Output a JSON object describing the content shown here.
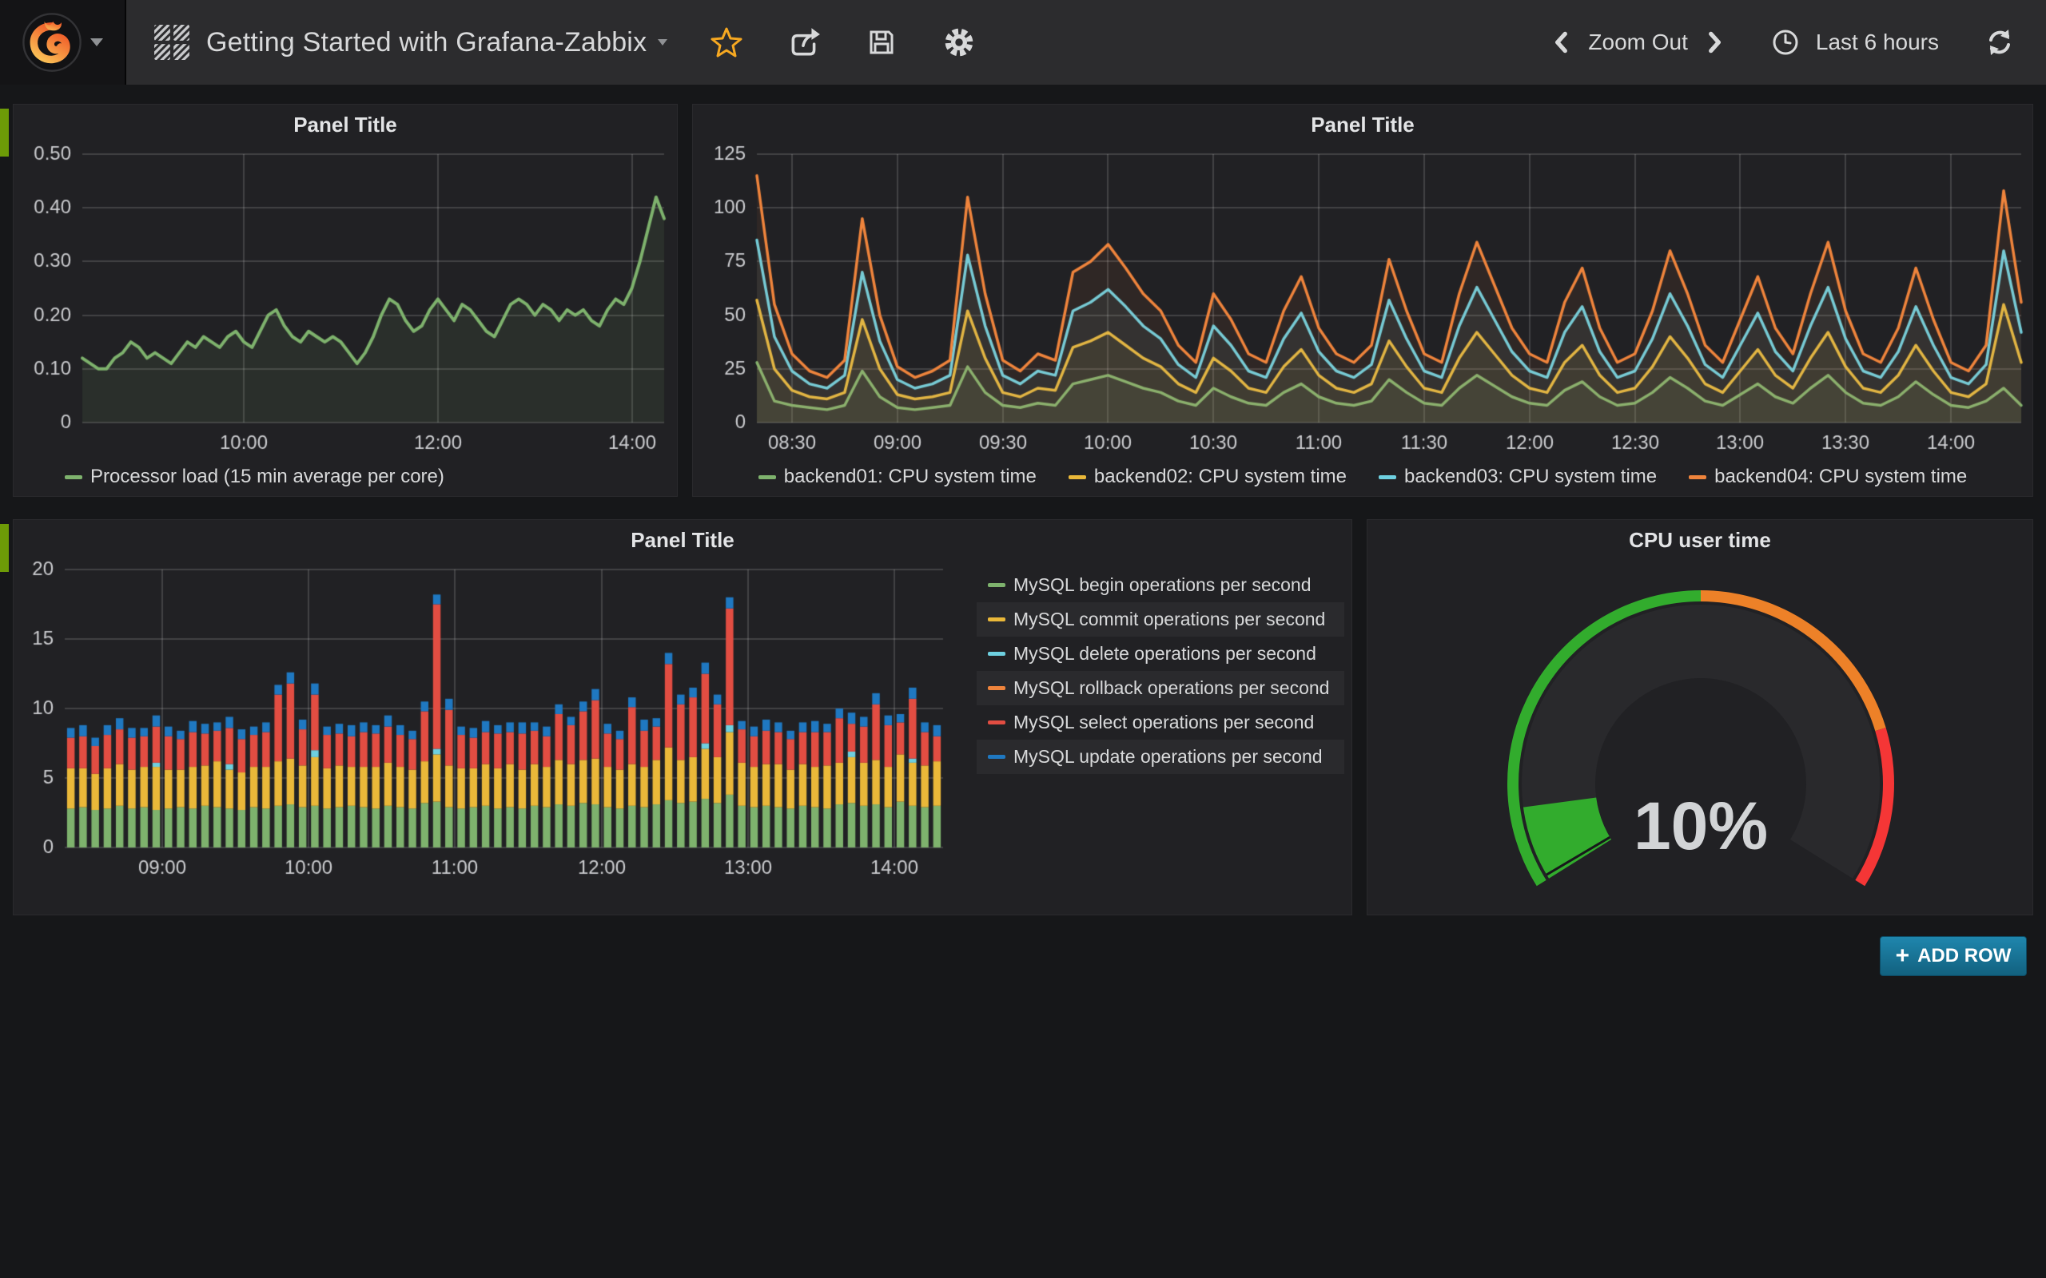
{
  "navbar": {
    "title": "Getting Started with Grafana-Zabbix",
    "zoom_out": "Zoom Out",
    "time_range": "Last 6 hours",
    "star_color": "#f6a821",
    "icon_color": "#d8d9da"
  },
  "add_row": {
    "label": "ADD ROW",
    "plus": "+"
  },
  "colors": {
    "green": "#7eb26d",
    "yellow": "#eab839",
    "cyan": "#6ed0e0",
    "orange": "#ef843c",
    "red": "#e24d42",
    "blue": "#1f78c1",
    "row_tab": "#6d9b07",
    "panel_bg": "#212124",
    "page_bg": "#161719",
    "navbar_bg": "#2c2c2e"
  },
  "chart_data": [
    {
      "type": "line",
      "title": "Panel Title",
      "window_min": 360,
      "x_start": "08:20",
      "x_step_min": 5,
      "ylim": [
        0,
        0.5
      ],
      "yticks": [
        {
          "v": 0,
          "label": "0"
        },
        {
          "v": 0.1,
          "label": "0.10"
        },
        {
          "v": 0.2,
          "label": "0.20"
        },
        {
          "v": 0.3,
          "label": "0.30"
        },
        {
          "v": 0.4,
          "label": "0.40"
        },
        {
          "v": 0.5,
          "label": "0.50"
        }
      ],
      "xticks": [
        {
          "label": "10:00",
          "t": 100
        },
        {
          "label": "12:00",
          "t": 220
        },
        {
          "label": "14:00",
          "t": 340
        }
      ],
      "series": [
        {
          "name": "Processor load (15 min average per core)",
          "color": "#7eb26d",
          "values": [
            0.12,
            0.11,
            0.1,
            0.1,
            0.12,
            0.13,
            0.15,
            0.14,
            0.12,
            0.13,
            0.12,
            0.11,
            0.13,
            0.15,
            0.14,
            0.16,
            0.15,
            0.14,
            0.16,
            0.17,
            0.15,
            0.14,
            0.17,
            0.2,
            0.21,
            0.18,
            0.16,
            0.15,
            0.17,
            0.16,
            0.15,
            0.16,
            0.15,
            0.13,
            0.11,
            0.13,
            0.16,
            0.2,
            0.23,
            0.22,
            0.19,
            0.17,
            0.18,
            0.21,
            0.23,
            0.21,
            0.19,
            0.22,
            0.21,
            0.19,
            0.17,
            0.16,
            0.19,
            0.22,
            0.23,
            0.22,
            0.2,
            0.22,
            0.21,
            0.19,
            0.21,
            0.2,
            0.21,
            0.19,
            0.18,
            0.21,
            0.23,
            0.22,
            0.25,
            0.3,
            0.36,
            0.42,
            0.38
          ]
        }
      ]
    },
    {
      "type": "line",
      "title": "Panel Title",
      "window_min": 360,
      "x_start": "08:20",
      "x_step_min": 5,
      "ylim": [
        0,
        125
      ],
      "yticks": [
        {
          "v": 0,
          "label": "0"
        },
        {
          "v": 25,
          "label": "25"
        },
        {
          "v": 50,
          "label": "50"
        },
        {
          "v": 75,
          "label": "75"
        },
        {
          "v": 100,
          "label": "100"
        },
        {
          "v": 125,
          "label": "125"
        }
      ],
      "xticks": [
        {
          "label": "08:30",
          "t": 10
        },
        {
          "label": "09:00",
          "t": 40
        },
        {
          "label": "09:30",
          "t": 70
        },
        {
          "label": "10:00",
          "t": 100
        },
        {
          "label": "10:30",
          "t": 130
        },
        {
          "label": "11:00",
          "t": 160
        },
        {
          "label": "11:30",
          "t": 190
        },
        {
          "label": "12:00",
          "t": 220
        },
        {
          "label": "12:30",
          "t": 250
        },
        {
          "label": "13:00",
          "t": 280
        },
        {
          "label": "13:30",
          "t": 310
        },
        {
          "label": "14:00",
          "t": 340
        }
      ],
      "series": [
        {
          "name": "backend01: CPU system time",
          "color": "#7eb26d",
          "values": [
            28,
            10,
            8,
            7,
            6,
            8,
            24,
            12,
            7,
            6,
            7,
            8,
            26,
            14,
            8,
            7,
            9,
            8,
            18,
            20,
            22,
            19,
            16,
            14,
            10,
            8,
            16,
            12,
            9,
            8,
            14,
            18,
            12,
            9,
            8,
            10,
            20,
            14,
            9,
            8,
            16,
            22,
            17,
            12,
            9,
            8,
            15,
            19,
            12,
            8,
            9,
            14,
            21,
            16,
            10,
            8,
            13,
            18,
            12,
            9,
            16,
            22,
            14,
            9,
            8,
            12,
            19,
            13,
            8,
            7,
            10,
            16,
            8
          ]
        },
        {
          "name": "backend02: CPU system time",
          "color": "#eab839",
          "values": [
            57,
            25,
            15,
            12,
            11,
            14,
            48,
            25,
            13,
            11,
            12,
            14,
            52,
            30,
            14,
            12,
            16,
            15,
            35,
            38,
            42,
            36,
            30,
            26,
            18,
            14,
            30,
            24,
            16,
            14,
            26,
            34,
            22,
            16,
            14,
            18,
            38,
            26,
            16,
            14,
            30,
            42,
            32,
            22,
            16,
            14,
            28,
            36,
            22,
            14,
            16,
            26,
            40,
            30,
            18,
            14,
            24,
            34,
            22,
            16,
            30,
            42,
            26,
            16,
            14,
            22,
            36,
            24,
            14,
            12,
            18,
            55,
            28
          ]
        },
        {
          "name": "backend03: CPU system time",
          "color": "#6ed0e0",
          "values": [
            85,
            40,
            24,
            18,
            16,
            22,
            70,
            38,
            20,
            16,
            18,
            22,
            78,
            45,
            22,
            18,
            24,
            22,
            52,
            56,
            62,
            54,
            45,
            39,
            27,
            21,
            45,
            36,
            24,
            21,
            39,
            51,
            33,
            24,
            21,
            27,
            57,
            39,
            24,
            21,
            45,
            63,
            48,
            33,
            24,
            21,
            42,
            54,
            33,
            21,
            24,
            39,
            60,
            45,
            27,
            21,
            36,
            51,
            33,
            24,
            45,
            63,
            39,
            24,
            21,
            33,
            54,
            36,
            21,
            18,
            27,
            80,
            42
          ]
        },
        {
          "name": "backend04: CPU system time",
          "color": "#ef843c",
          "values": [
            115,
            55,
            32,
            24,
            21,
            29,
            95,
            50,
            26,
            21,
            24,
            29,
            105,
            60,
            29,
            24,
            32,
            29,
            70,
            75,
            83,
            72,
            60,
            52,
            36,
            28,
            60,
            48,
            32,
            28,
            52,
            68,
            44,
            32,
            28,
            36,
            76,
            52,
            32,
            28,
            60,
            84,
            64,
            44,
            32,
            28,
            56,
            72,
            44,
            28,
            32,
            52,
            80,
            60,
            36,
            28,
            48,
            68,
            44,
            32,
            60,
            84,
            52,
            32,
            28,
            44,
            72,
            48,
            28,
            24,
            36,
            108,
            56
          ]
        }
      ]
    },
    {
      "type": "bar",
      "stacked": true,
      "title": "Panel Title",
      "window_min": 360,
      "x_start": "08:20",
      "x_step_min": 5,
      "ylim": [
        0,
        20
      ],
      "yticks": [
        {
          "v": 0,
          "label": "0"
        },
        {
          "v": 5,
          "label": "5"
        },
        {
          "v": 10,
          "label": "10"
        },
        {
          "v": 15,
          "label": "15"
        },
        {
          "v": 20,
          "label": "20"
        }
      ],
      "xticks": [
        {
          "label": "09:00",
          "t": 40
        },
        {
          "label": "10:00",
          "t": 100
        },
        {
          "label": "11:00",
          "t": 160
        },
        {
          "label": "12:00",
          "t": 220
        },
        {
          "label": "13:00",
          "t": 280
        },
        {
          "label": "14:00",
          "t": 340
        }
      ],
      "series": [
        {
          "name": "MySQL begin operations per second",
          "color": "#7eb26d",
          "values": [
            2.8,
            2.9,
            2.7,
            2.8,
            3.0,
            2.8,
            2.9,
            2.7,
            2.8,
            2.9,
            2.8,
            3.0,
            2.9,
            2.8,
            2.7,
            2.9,
            2.8,
            3.0,
            3.1,
            2.9,
            3.0,
            2.8,
            2.9,
            3.0,
            2.9,
            2.8,
            3.0,
            2.9,
            2.8,
            3.2,
            3.3,
            2.9,
            2.8,
            2.9,
            3.0,
            2.8,
            2.9,
            2.8,
            3.0,
            2.9,
            3.1,
            3.0,
            3.2,
            3.1,
            2.9,
            2.8,
            3.0,
            2.9,
            3.1,
            3.4,
            3.2,
            3.3,
            3.5,
            3.2,
            3.8,
            3.0,
            2.9,
            3.0,
            2.9,
            2.8,
            3.0,
            2.9,
            2.8,
            3.1,
            3.2,
            3.0,
            3.1,
            2.9,
            3.3,
            3.0,
            2.9,
            3.0
          ]
        },
        {
          "name": "MySQL commit operations per second",
          "color": "#eab839",
          "values": [
            2.9,
            2.8,
            2.6,
            2.9,
            3.0,
            2.8,
            2.9,
            3.1,
            2.8,
            2.7,
            3.0,
            2.9,
            3.3,
            2.8,
            2.7,
            2.9,
            3.0,
            3.2,
            3.3,
            3.0,
            3.5,
            2.9,
            3.0,
            2.8,
            2.9,
            3.0,
            3.1,
            2.9,
            2.8,
            3.0,
            3.4,
            3.0,
            2.9,
            2.8,
            3.0,
            2.9,
            3.1,
            2.8,
            3.0,
            2.9,
            3.2,
            3.0,
            3.1,
            3.3,
            2.9,
            2.8,
            3.0,
            2.9,
            3.2,
            3.8,
            3.1,
            3.2,
            3.6,
            3.3,
            4.5,
            3.1,
            2.9,
            3.0,
            3.1,
            2.8,
            3.0,
            2.9,
            3.1,
            3.0,
            3.3,
            3.1,
            3.2,
            2.9,
            3.4,
            3.1,
            3.0,
            3.2
          ]
        },
        {
          "name": "MySQL delete operations per second",
          "color": "#6ed0e0",
          "values": [
            0,
            0,
            0,
            0,
            0,
            0,
            0,
            0.3,
            0,
            0,
            0,
            0,
            0,
            0.4,
            0,
            0,
            0,
            0,
            0,
            0,
            0.5,
            0,
            0,
            0,
            0,
            0,
            0,
            0,
            0,
            0,
            0.4,
            0,
            0,
            0,
            0,
            0,
            0,
            0,
            0,
            0,
            0,
            0,
            0,
            0,
            0,
            0,
            0,
            0,
            0,
            0,
            0,
            0,
            0.4,
            0,
            0.5,
            0,
            0,
            0,
            0,
            0,
            0,
            0,
            0,
            0,
            0.4,
            0,
            0,
            0,
            0,
            0.3,
            0,
            0
          ]
        },
        {
          "name": "MySQL rollback operations per second",
          "color": "#ef843c",
          "values": [
            0,
            0,
            0,
            0,
            0,
            0,
            0,
            0,
            0,
            0,
            0,
            0,
            0,
            0,
            0,
            0,
            0,
            0,
            0,
            0,
            0,
            0,
            0,
            0,
            0,
            0,
            0,
            0,
            0,
            0,
            0,
            0,
            0,
            0,
            0,
            0,
            0,
            0,
            0,
            0,
            0,
            0,
            0,
            0,
            0,
            0,
            0,
            0,
            0,
            0,
            0,
            0,
            0,
            0,
            0,
            0,
            0,
            0,
            0,
            0,
            0,
            0,
            0,
            0,
            0,
            0,
            0,
            0,
            0,
            0,
            0,
            0
          ]
        },
        {
          "name": "MySQL select operations per second",
          "color": "#e24d42",
          "values": [
            2.2,
            2.3,
            2.0,
            2.4,
            2.5,
            2.3,
            2.2,
            2.6,
            2.4,
            2.2,
            2.5,
            2.3,
            2.2,
            2.6,
            2.4,
            2.3,
            2.5,
            4.8,
            5.4,
            2.6,
            4.0,
            2.4,
            2.3,
            2.2,
            2.5,
            2.4,
            2.6,
            2.3,
            2.2,
            3.6,
            10.4,
            4.0,
            2.4,
            2.2,
            2.3,
            2.5,
            2.3,
            2.6,
            2.4,
            2.2,
            3.3,
            2.8,
            3.5,
            4.2,
            2.4,
            2.2,
            4.1,
            2.6,
            2.4,
            6.0,
            4.0,
            4.3,
            5.0,
            3.8,
            8.4,
            2.4,
            2.2,
            2.4,
            2.3,
            2.2,
            2.3,
            2.5,
            2.4,
            3.2,
            2.0,
            2.6,
            4.0,
            3.0,
            2.3,
            4.3,
            2.4,
            1.8
          ]
        },
        {
          "name": "MySQL update operations per second",
          "color": "#1f78c1",
          "values": [
            0.7,
            0.8,
            0.6,
            0.7,
            0.8,
            0.7,
            0.6,
            0.8,
            0.7,
            0.6,
            0.8,
            0.7,
            0.6,
            0.8,
            0.7,
            0.6,
            0.7,
            0.7,
            0.8,
            0.7,
            0.8,
            0.6,
            0.7,
            0.8,
            0.7,
            0.6,
            0.8,
            0.7,
            0.6,
            0.7,
            0.7,
            0.8,
            0.6,
            0.7,
            0.8,
            0.6,
            0.7,
            0.8,
            0.6,
            0.7,
            0.7,
            0.6,
            0.7,
            0.8,
            0.7,
            0.6,
            0.7,
            0.8,
            0.6,
            0.8,
            0.7,
            0.7,
            0.8,
            0.7,
            0.8,
            0.6,
            0.7,
            0.8,
            0.7,
            0.6,
            0.7,
            0.8,
            0.6,
            0.7,
            0.8,
            0.7,
            0.8,
            0.7,
            0.6,
            0.8,
            0.7,
            0.8
          ]
        }
      ]
    },
    {
      "type": "gauge",
      "title": "CPU user time",
      "value": 10,
      "display": "10%",
      "min": 0,
      "max": 100,
      "thresholds": [
        {
          "to": 50,
          "color": "#32ac2d"
        },
        {
          "to": 80,
          "color": "#ed8128"
        },
        {
          "to": 100,
          "color": "#f53636"
        }
      ]
    }
  ]
}
